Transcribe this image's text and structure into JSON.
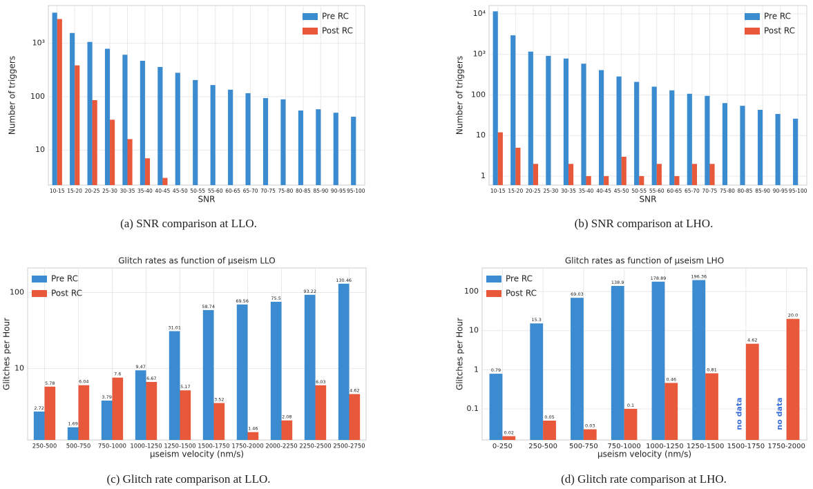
{
  "chart_data": [
    {
      "type": "bar",
      "log": true,
      "grid": true,
      "legend": "upper right",
      "xlabel": "SNR",
      "ylabel": "Number of triggers",
      "caption": "(a) SNR comparison at LLO.",
      "categories": [
        "10-15",
        "15-20",
        "20-25",
        "25-30",
        "30-35",
        "35-40",
        "40-45",
        "45-50",
        "50-55",
        "55-60",
        "60-65",
        "65-70",
        "70-75",
        "75-80",
        "80-85",
        "85-90",
        "90-95",
        "95-100"
      ],
      "series": [
        {
          "name": "Pre RC",
          "color": "#3b8bd0",
          "values": [
            3750,
            1560,
            1060,
            790,
            610,
            470,
            360,
            280,
            205,
            165,
            135,
            116,
            94,
            89,
            55,
            58,
            50,
            42
          ]
        },
        {
          "name": "Post RC",
          "color": "#e8593c",
          "values": [
            2850,
            385,
            86,
            37,
            16,
            7,
            3,
            null,
            null,
            null,
            null,
            null,
            null,
            null,
            null,
            null,
            null,
            null
          ]
        }
      ],
      "ylim": [
        2.2,
        5100
      ],
      "yticks": [
        10,
        100,
        {
          "value": 1000,
          "label": "10³"
        }
      ]
    },
    {
      "type": "bar",
      "log": true,
      "grid": true,
      "legend": "upper right",
      "xlabel": "SNR",
      "ylabel": "Number of triggers",
      "caption": "(b) SNR comparison at LHO.",
      "categories": [
        "10-15",
        "15-20",
        "20-25",
        "25-30",
        "30-35",
        "35-40",
        "40-45",
        "45-50",
        "50-55",
        "55-60",
        "60-65",
        "65-70",
        "70-75",
        "75-80",
        "80-85",
        "85-90",
        "90-95",
        "95-100"
      ],
      "series": [
        {
          "name": "Pre RC",
          "color": "#3b8bd0",
          "values": [
            11500,
            2950,
            1170,
            920,
            790,
            590,
            410,
            285,
            210,
            160,
            130,
            107,
            95,
            63,
            54,
            43,
            34,
            26
          ]
        },
        {
          "name": "Post RC",
          "color": "#e8593c",
          "values": [
            12,
            5,
            2,
            null,
            2,
            1,
            1,
            3,
            1,
            2,
            1,
            2,
            2,
            null,
            null,
            null,
            null,
            null
          ]
        }
      ],
      "ylim": [
        0.6,
        16000
      ],
      "yticks": [
        1,
        10,
        100,
        {
          "value": 1000,
          "label": "10³"
        },
        {
          "value": 10000,
          "label": "10⁴"
        }
      ]
    },
    {
      "type": "bar",
      "log": true,
      "grid": true,
      "legend": "upper left",
      "data_labels": true,
      "title": "Glitch rates as function of μseism LLO",
      "xlabel": "μseism velocity (nm/s)",
      "ylabel": "Glitches per Hour",
      "caption": "(c) Glitch rate comparison at LLO.",
      "categories": [
        "250-500",
        "500-750",
        "750-1000",
        "1000-1250",
        "1250-1500",
        "1500-1750",
        "1750-2000",
        "2000-2250",
        "2250-2500",
        "2500-2750"
      ],
      "series": [
        {
          "name": "Pre RC",
          "color": "#3b8bd0",
          "values": [
            2.72,
            1.69,
            3.79,
            9.47,
            31.01,
            58.74,
            69.56,
            75.5,
            93.22,
            130.46
          ]
        },
        {
          "name": "Post RC",
          "color": "#e8593c",
          "values": [
            5.78,
            6.04,
            7.6,
            6.67,
            5.17,
            3.52,
            1.46,
            2.08,
            6.03,
            4.62
          ]
        }
      ],
      "ylim": [
        1.15,
        210
      ],
      "yticks": [
        10,
        100
      ]
    },
    {
      "type": "bar",
      "log": true,
      "grid": true,
      "legend": "upper left",
      "data_labels": true,
      "title": "Glitch rates as function of μseism LHO",
      "xlabel": "μseism velocity (nm/s)",
      "ylabel": "Glitches per Hour",
      "caption": "(d) Glitch rate comparison at LHO.",
      "categories": [
        "0-250",
        "250-500",
        "500-750",
        "750-1000",
        "1000-1250",
        "1250-1500",
        "1500-1750",
        "1750-2000"
      ],
      "series": [
        {
          "name": "Pre RC",
          "color": "#3b8bd0",
          "values": [
            0.79,
            15.3,
            69.03,
            138.9,
            178.89,
            196.36,
            null,
            null
          ]
        },
        {
          "name": "Post RC",
          "color": "#e8593c",
          "values": [
            0.02,
            0.05,
            0.03,
            0.1,
            0.46,
            0.81,
            4.62,
            20
          ],
          "value_labels": [
            "0.02",
            "0.05",
            "0.03",
            "0.1",
            "0.46",
            "0.81",
            "4.62",
            "20.0"
          ]
        }
      ],
      "annotations": [
        "no data",
        "no data"
      ],
      "ylim": [
        0.016,
        400
      ],
      "yticks": [
        0.1,
        1,
        10,
        100
      ]
    }
  ]
}
